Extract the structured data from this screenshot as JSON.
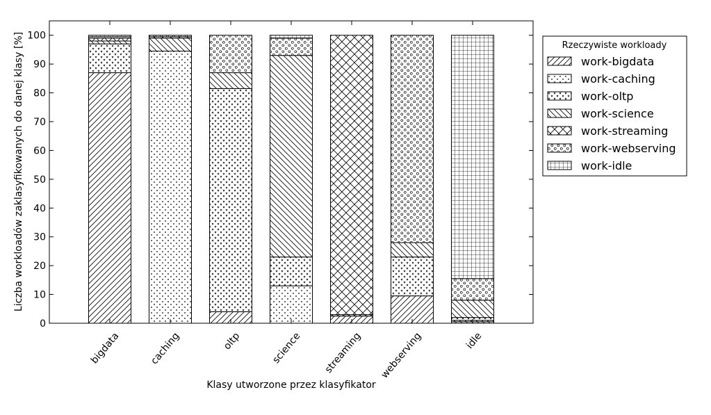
{
  "chart_data": {
    "type": "bar",
    "stacked": true,
    "xlabel": "Klasy utworzone przez klasyfikator",
    "ylabel": "Liczba  workloadów zaklasyfikowanych do danej klasy [%]",
    "ylim": [
      0,
      105
    ],
    "yticks": [
      0,
      10,
      20,
      30,
      40,
      50,
      60,
      70,
      80,
      90,
      100
    ],
    "grid": false,
    "categories": [
      "bigdata",
      "caching",
      "oltp",
      "science",
      "streaming",
      "webserving",
      "idle"
    ],
    "legend": {
      "title": "Rzeczywiste workloady",
      "placement": "right"
    },
    "series": [
      {
        "name": "work-bigdata",
        "hatch": "diag-right",
        "values": [
          87,
          0,
          4,
          0,
          2.5,
          9.5,
          0.5
        ]
      },
      {
        "name": "work-caching",
        "hatch": "dots",
        "values": [
          0,
          94.5,
          0,
          13,
          0,
          0,
          0.5
        ]
      },
      {
        "name": "work-oltp",
        "hatch": "stars",
        "values": [
          10,
          0,
          77.5,
          10,
          0.5,
          13.5,
          1
        ]
      },
      {
        "name": "work-science",
        "hatch": "diag-left",
        "values": [
          1,
          4.5,
          5.5,
          70,
          0,
          5,
          6
        ]
      },
      {
        "name": "work-streaming",
        "hatch": "cross",
        "values": [
          1,
          0.5,
          0,
          0,
          97,
          0,
          0
        ]
      },
      {
        "name": "work-webserving",
        "hatch": "circles",
        "values": [
          0.5,
          0.5,
          13,
          6,
          0,
          72,
          7.5
        ]
      },
      {
        "name": "work-idle",
        "hatch": "grid",
        "values": [
          0.5,
          0,
          0,
          1,
          0,
          0,
          84.5
        ]
      }
    ]
  }
}
